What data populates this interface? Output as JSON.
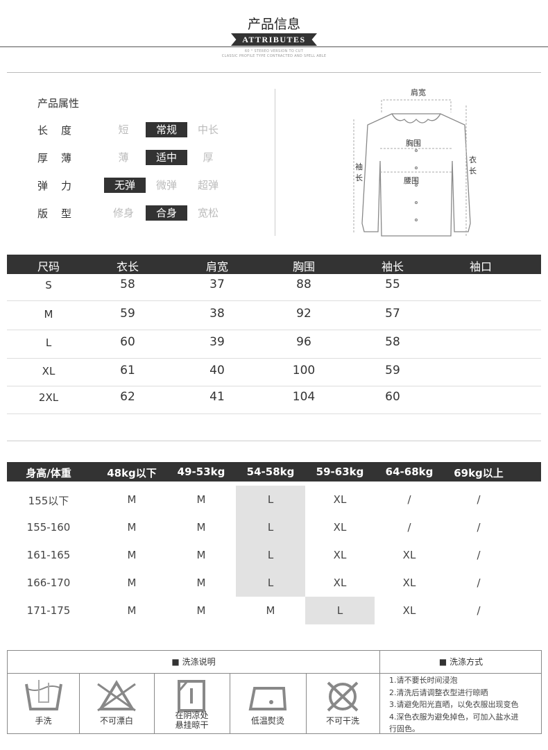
{
  "header": {
    "title": "产品信息",
    "banner": "ATTRIBUTES",
    "sub1": "60 ° STEREO VERSION TO CUT",
    "sub2": "CLASSIC PROFILE TYPE CONTRACTED AND SPELL ABLE"
  },
  "attributes": {
    "heading": "产品属性",
    "rows": [
      {
        "label": "长　度",
        "options": [
          "短",
          "常规",
          "中长"
        ],
        "selected": "常规"
      },
      {
        "label": "厚　薄",
        "options": [
          "薄",
          "适中",
          "厚"
        ],
        "selected": "适中"
      },
      {
        "label": "弹　力",
        "options": [
          "无弹",
          "微弹",
          "超弹"
        ],
        "selected": "无弹"
      },
      {
        "label": "版　型",
        "options": [
          "修身",
          "合身",
          "宽松"
        ],
        "selected": "合身"
      }
    ]
  },
  "diagram": {
    "shoulder": "肩宽",
    "chest": "胸围",
    "waist": "腰围",
    "sleeve": "袖长",
    "length": "衣长"
  },
  "size_table": {
    "headers": [
      "尺码",
      "衣长",
      "肩宽",
      "胸围",
      "袖长",
      "袖口"
    ],
    "rows": [
      [
        "S",
        "58",
        "37",
        "88",
        "55",
        ""
      ],
      [
        "M",
        "59",
        "38",
        "92",
        "57",
        ""
      ],
      [
        "L",
        "60",
        "39",
        "96",
        "58",
        ""
      ],
      [
        "XL",
        "61",
        "40",
        "100",
        "59",
        ""
      ],
      [
        "2XL",
        "62",
        "41",
        "104",
        "60",
        ""
      ]
    ]
  },
  "fit_table": {
    "headers": [
      "身高/体重",
      "48kg以下",
      "49-53kg",
      "54-58kg",
      "59-63kg",
      "64-68kg",
      "69kg以上"
    ],
    "rows": [
      [
        "155以下",
        "M",
        "M",
        "L",
        "XL",
        "/",
        "/"
      ],
      [
        "155-160",
        "M",
        "M",
        "L",
        "XL",
        "/",
        "/"
      ],
      [
        "161-165",
        "M",
        "M",
        "L",
        "XL",
        "XL",
        "/"
      ],
      [
        "166-170",
        "M",
        "M",
        "L",
        "XL",
        "XL",
        "/"
      ],
      [
        "171-175",
        "M",
        "M",
        "M",
        "L",
        "XL",
        "/"
      ]
    ],
    "highlight_color": "#e2e2e2"
  },
  "care": {
    "left_title": "■ 洗涤说明",
    "right_title": "■ 洗涤方式",
    "icons": [
      {
        "icon": "hand-wash-icon",
        "label": "手洗"
      },
      {
        "icon": "no-bleach-icon",
        "label": "不可漂白"
      },
      {
        "icon": "shade-dry-icon",
        "label": "在阴凉处\n悬挂晾干"
      },
      {
        "icon": "low-iron-icon",
        "label": "低温熨烫"
      },
      {
        "icon": "no-dry-clean-icon",
        "label": "不可干洗"
      }
    ],
    "notes": [
      "1.请不要长时间浸泡",
      "2.清洗后请调整衣型进行晾晒",
      "3.请避免阳光直晒，以免衣服出现变色",
      "4.深色衣服为避免掉色，可加入盐水进",
      "行固色。"
    ]
  }
}
